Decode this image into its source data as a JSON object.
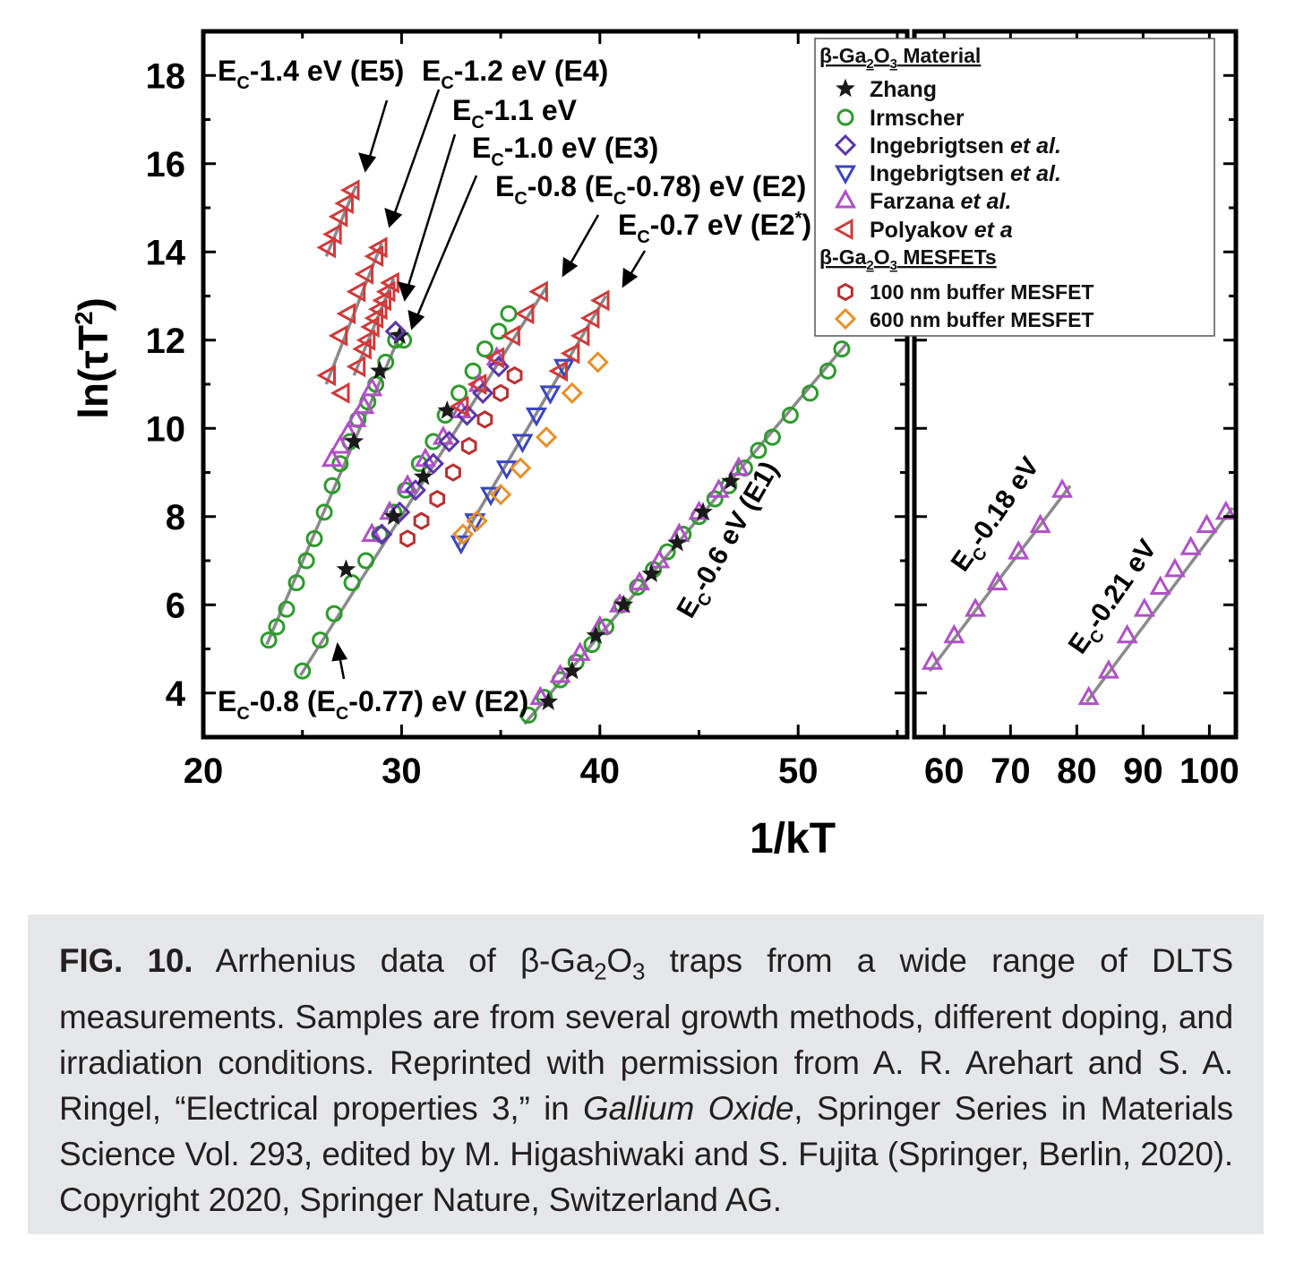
{
  "chart_data": {
    "type": "scatter",
    "ylabel_main": "ln(τT",
    "ylabel_sup": "2",
    "ylabel_close": ")",
    "xlabel": "1/kT",
    "ylim": [
      3,
      19
    ],
    "left_panel": {
      "xlim": [
        20,
        55.5
      ],
      "xticks": [
        "20",
        "30",
        "40",
        "50"
      ]
    },
    "right_panel": {
      "xlim": [
        55.5,
        104
      ],
      "xticks": [
        "60",
        "70",
        "80",
        "90",
        "100"
      ]
    },
    "yticks": [
      "4",
      "6",
      "8",
      "10",
      "12",
      "14",
      "16",
      "18"
    ],
    "legend": {
      "position": "top-right",
      "material_header": {
        "pre": "β-Ga",
        "sub1": "2",
        "mid": "O",
        "sub2": "3",
        "post": " Material"
      },
      "mesfet_header": {
        "pre": "β-Ga",
        "sub1": "2",
        "mid": "O",
        "sub2": "3",
        "post": " MESFETs"
      },
      "entries": [
        {
          "marker": "star",
          "color": "#1a1a1a",
          "name": "Zhang",
          "suffix": ""
        },
        {
          "marker": "circle",
          "color": "#2e9a2e",
          "name": "Irmscher",
          "suffix": ""
        },
        {
          "marker": "diamond",
          "color": "#5a35a8",
          "name": "Ingebrigtsen ",
          "suffix": "et al."
        },
        {
          "marker": "tri-down",
          "color": "#3a45c0",
          "name": "Ingebrigtsen ",
          "suffix": "et al."
        },
        {
          "marker": "tri-up",
          "color": "#b050c8",
          "name": "Farzana ",
          "suffix": "et al."
        },
        {
          "marker": "tri-left",
          "color": "#d03a3a",
          "name": "Polyakov ",
          "suffix": "et a"
        }
      ],
      "mesfet_entries": [
        {
          "marker": "hexagon",
          "color": "#b83030",
          "name": "100 nm buffer MESFET"
        },
        {
          "marker": "diamond",
          "color": "#e8902a",
          "name": "600 nm buffer MESFET"
        }
      ]
    },
    "annotations": [
      {
        "pre": "E",
        "sub": "C",
        "post": "-1.4 eV (E5)"
      },
      {
        "pre": "E",
        "sub": "C",
        "post": "-1.2 eV (E4)"
      },
      {
        "pre": "E",
        "sub": "C",
        "post": "-1.1 eV"
      },
      {
        "pre": "E",
        "sub": "C",
        "post": "-1.0 eV (E3)"
      },
      {
        "pre": "E",
        "sub": "C",
        "post": "-0.8 (E",
        "sub2": "C",
        "post2": "-0.78) eV (E2)"
      },
      {
        "pre": "E",
        "sub": "C",
        "post": "-0.7 eV (E2",
        "sup": "*",
        "post2": ")"
      },
      {
        "pre": "E",
        "sub": "C",
        "post": "-0.8 (E",
        "sub2": "C",
        "post2": "-0.77) eV (E2)"
      },
      {
        "pre": "E",
        "sub": "C",
        "post": "-0.6 eV (E1)"
      },
      {
        "pre": "E",
        "sub": "C",
        "post": "-0.18 eV"
      },
      {
        "pre": "E",
        "sub": "C",
        "post": "-0.21 eV"
      }
    ],
    "series": [
      {
        "name": "Polyakov",
        "trap": "E5",
        "marker": "tri-left",
        "color": "#d03a3a",
        "x": [
          26.3,
          26.6,
          26.9,
          27.2,
          27.5
        ],
        "y": [
          14.1,
          14.4,
          14.8,
          15.1,
          15.4
        ]
      },
      {
        "name": "Polyakov",
        "trap": "E4",
        "marker": "tri-left",
        "color": "#d03a3a",
        "x": [
          26.3,
          26.9,
          27.3,
          27.8,
          28.2,
          28.7,
          28.9,
          27.0
        ],
        "y": [
          11.2,
          12.1,
          12.6,
          13.1,
          13.5,
          13.9,
          14.1,
          10.8
        ]
      },
      {
        "name": "Polyakov",
        "trap": "E4'",
        "marker": "tri-left",
        "color": "#d03a3a",
        "x": [
          27.8,
          28.1,
          28.3,
          28.5,
          28.7,
          28.9,
          29.1,
          29.3,
          29.5
        ],
        "y": [
          11.4,
          11.8,
          12.0,
          12.3,
          12.5,
          12.7,
          12.9,
          13.1,
          13.3
        ]
      },
      {
        "name": "Irmscher",
        "trap": "E3",
        "marker": "circle",
        "color": "#2e9a2e",
        "x": [
          23.3,
          23.7,
          24.2,
          24.7,
          25.2,
          25.6,
          26.1,
          26.5,
          26.9,
          27.4,
          27.8,
          28.3,
          28.7,
          29.2,
          29.7,
          30.1
        ],
        "y": [
          5.2,
          5.5,
          5.9,
          6.5,
          7.0,
          7.5,
          8.1,
          8.7,
          9.2,
          9.7,
          10.2,
          10.6,
          11.0,
          11.5,
          12.0,
          12.0
        ]
      },
      {
        "name": "Farzana",
        "trap": "E3",
        "marker": "tri-up",
        "color": "#b050c8",
        "x": [
          26.5,
          26.9,
          27.3,
          27.7,
          28.1,
          28.5
        ],
        "y": [
          9.3,
          9.6,
          9.9,
          10.2,
          10.5,
          10.9
        ]
      },
      {
        "name": "Zhang",
        "trap": "E3",
        "marker": "star",
        "color": "#1a1a1a",
        "x": [
          27.6,
          28.9,
          29.9
        ],
        "y": [
          9.7,
          11.3,
          12.1
        ]
      },
      {
        "name": "Ingebrigtsen",
        "trap": "E3",
        "marker": "diamond",
        "color": "#5a35a8",
        "x": [
          29.7
        ],
        "y": [
          12.2
        ]
      },
      {
        "name": "Irmscher",
        "trap": "E2",
        "marker": "circle",
        "color": "#2e9a2e",
        "x": [
          25.0,
          25.9,
          26.6,
          27.5,
          28.2,
          28.9,
          29.6,
          30.2,
          30.9,
          31.6,
          32.2,
          32.9,
          33.6,
          34.2,
          34.9,
          35.4
        ],
        "y": [
          4.5,
          5.2,
          5.8,
          6.5,
          7.0,
          7.6,
          8.1,
          8.6,
          9.2,
          9.7,
          10.3,
          10.8,
          11.3,
          11.8,
          12.2,
          12.6
        ]
      },
      {
        "name": "Farzana",
        "trap": "E2",
        "marker": "tri-up",
        "color": "#b050c8",
        "x": [
          28.5,
          29.4,
          30.3,
          31.2,
          32.1,
          33.0,
          33.9,
          34.8
        ],
        "y": [
          7.6,
          8.1,
          8.7,
          9.3,
          9.8,
          10.4,
          11.0,
          11.6
        ]
      },
      {
        "name": "Ingebrigtsen",
        "trap": "E2",
        "marker": "diamond",
        "color": "#5a35a8",
        "x": [
          29.0,
          29.9,
          30.7,
          31.6,
          32.4,
          33.3,
          34.1,
          34.9
        ],
        "y": [
          7.6,
          8.1,
          8.6,
          9.2,
          9.7,
          10.3,
          10.8,
          11.4
        ]
      },
      {
        "name": "Zhang",
        "trap": "E2",
        "marker": "star",
        "color": "#1a1a1a",
        "x": [
          27.2,
          29.6,
          31.1,
          32.3
        ],
        "y": [
          6.8,
          8.0,
          8.9,
          10.4
        ]
      },
      {
        "name": "Polyakov",
        "trap": "E2",
        "marker": "tri-left",
        "color": "#d03a3a",
        "x": [
          33.0,
          33.9,
          34.8,
          35.6,
          36.3,
          37.0
        ],
        "y": [
          10.5,
          11.0,
          11.6,
          12.1,
          12.6,
          13.1
        ]
      },
      {
        "name": "100 nm buffer MESFET",
        "trap": "E2",
        "marker": "hexagon",
        "color": "#b83030",
        "x": [
          30.3,
          31.0,
          31.8,
          32.6,
          33.4,
          34.2,
          35.0,
          35.7
        ],
        "y": [
          7.5,
          7.9,
          8.4,
          9.0,
          9.6,
          10.2,
          10.8,
          11.2
        ]
      },
      {
        "name": "Ingebrigtsen",
        "trap": "E2*",
        "marker": "tri-down",
        "color": "#3a45c0",
        "x": [
          33.0,
          33.7,
          34.5,
          35.3,
          36.1,
          36.8,
          37.5,
          38.2
        ],
        "y": [
          7.4,
          7.9,
          8.5,
          9.1,
          9.7,
          10.3,
          10.8,
          11.4
        ]
      },
      {
        "name": "600 nm buffer MESFET",
        "trap": "E2*",
        "marker": "diamond",
        "color": "#e8902a",
        "x": [
          33.1,
          33.8,
          35.0,
          36.0,
          37.3,
          38.6,
          39.9
        ],
        "y": [
          7.6,
          7.9,
          8.5,
          9.1,
          9.8,
          10.8,
          11.5
        ]
      },
      {
        "name": "Polyakov",
        "trap": "E2*",
        "marker": "tri-left",
        "color": "#d03a3a",
        "x": [
          38.0,
          38.6,
          39.1,
          39.6,
          40.1
        ],
        "y": [
          11.3,
          11.7,
          12.1,
          12.5,
          12.9
        ]
      },
      {
        "name": "Irmscher",
        "trap": "E1",
        "marker": "circle",
        "color": "#2e9a2e",
        "x": [
          36.4,
          37.2,
          38.0,
          38.8,
          39.6,
          40.3,
          41.1,
          41.9,
          42.7,
          43.4,
          44.2,
          45.0,
          45.8,
          46.5,
          47.3,
          48.0,
          48.7,
          49.6,
          50.6,
          51.5,
          52.2
        ],
        "y": [
          3.5,
          3.9,
          4.3,
          4.7,
          5.1,
          5.5,
          6.0,
          6.4,
          6.8,
          7.2,
          7.6,
          8.0,
          8.4,
          8.7,
          9.1,
          9.5,
          9.8,
          10.3,
          10.8,
          11.3,
          11.8
        ]
      },
      {
        "name": "Farzana",
        "trap": "E1",
        "marker": "tri-up",
        "color": "#b050c8",
        "x": [
          37.0,
          38.0,
          39.0,
          40.0,
          41.0,
          42.0,
          43.0,
          44.0,
          45.0,
          46.0,
          47.0
        ],
        "y": [
          3.9,
          4.4,
          4.9,
          5.5,
          6.0,
          6.5,
          7.0,
          7.6,
          8.1,
          8.6,
          9.1
        ]
      },
      {
        "name": "Zhang",
        "trap": "E1",
        "marker": "star",
        "color": "#1a1a1a",
        "x": [
          37.4,
          38.6,
          39.8,
          41.2,
          42.6,
          43.9,
          45.2,
          46.6
        ],
        "y": [
          3.8,
          4.5,
          5.3,
          6.0,
          6.7,
          7.4,
          8.1,
          8.8
        ]
      },
      {
        "name": "Farzana",
        "trap": "Ec-0.18 eV",
        "marker": "tri-up",
        "color": "#b050c8",
        "x": [
          58.2,
          61.5,
          64.7,
          68.0,
          71.2,
          74.5,
          77.8
        ],
        "y": [
          4.7,
          5.3,
          5.9,
          6.5,
          7.2,
          7.8,
          8.6
        ]
      },
      {
        "name": "Farzana",
        "trap": "Ec-0.21 eV",
        "marker": "tri-up",
        "color": "#b050c8",
        "x": [
          81.8,
          84.8,
          87.6,
          90.2,
          92.6,
          94.8,
          97.2,
          99.6,
          102.5
        ],
        "y": [
          3.9,
          4.5,
          5.3,
          5.9,
          6.4,
          6.8,
          7.3,
          7.8,
          8.1
        ]
      }
    ],
    "fit_lines": [
      {
        "x": [
          26.2,
          27.7
        ],
        "y": [
          13.9,
          15.5
        ]
      },
      {
        "x": [
          26.2,
          29.0
        ],
        "y": [
          11.0,
          14.2
        ]
      },
      {
        "x": [
          27.6,
          29.6
        ],
        "y": [
          11.2,
          13.4
        ]
      },
      {
        "x": [
          23.2,
          30.0
        ],
        "y": [
          5.1,
          12.2
        ]
      },
      {
        "x": [
          24.9,
          37.3
        ],
        "y": [
          4.4,
          13.2
        ]
      },
      {
        "x": [
          32.8,
          40.3
        ],
        "y": [
          7.3,
          13.0
        ]
      },
      {
        "x": [
          36.2,
          52.4
        ],
        "y": [
          3.3,
          11.9
        ]
      },
      {
        "x": [
          57.8,
          79.0
        ],
        "y": [
          4.5,
          8.7
        ]
      },
      {
        "x": [
          81.5,
          103.5
        ],
        "y": [
          3.8,
          8.2
        ]
      }
    ]
  },
  "caption": {
    "fig_label": "FIG. 10.",
    "t1": " Arrhenius data of β-Ga",
    "sub1": "2",
    "t2": "O",
    "sub2": "3",
    "t3": " traps from a wide range of DLTS measurements. Samples are from several growth methods, different doping, and irradiation conditions. Reprinted with permission from A. R. Arehart and S. A. Ringel, “Electrical properties 3,” in ",
    "italic": "Gallium Oxide",
    "t4": ", Springer Series in Materials Science Vol. 293, edited by M. Higashiwaki and S. Fujita (Springer, Berlin, 2020). Copyright 2020, Springer Nature, Switzerland AG."
  }
}
